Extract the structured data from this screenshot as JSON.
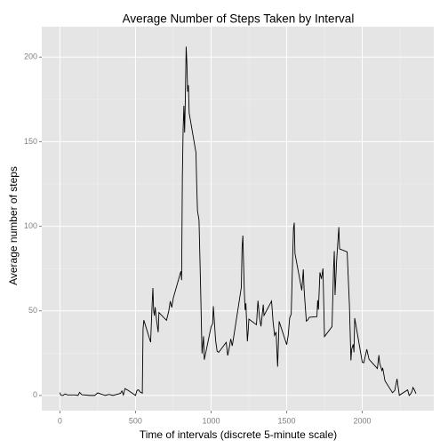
{
  "chart_data": {
    "type": "line",
    "title": "Average Number of Steps Taken by Interval",
    "xlabel": "Time of intervals (discrete 5-minute scale)",
    "ylabel": "Average number of steps",
    "color": "#000000",
    "grid": true,
    "xlim": [
      -120,
      2473
    ],
    "ylim": [
      -9,
      218
    ],
    "xticks": [
      0,
      500,
      1000,
      1500,
      2000
    ],
    "yticks": [
      0,
      50,
      100,
      150,
      200
    ],
    "x": [
      0,
      5,
      10,
      20,
      35,
      50,
      100,
      120,
      130,
      145,
      200,
      230,
      250,
      300,
      325,
      350,
      400,
      410,
      420,
      430,
      440,
      450,
      500,
      510,
      520,
      530,
      545,
      550,
      555,
      600,
      610,
      615,
      620,
      625,
      630,
      640,
      650,
      655,
      705,
      720,
      730,
      740,
      750,
      800,
      805,
      810,
      815,
      820,
      825,
      830,
      835,
      840,
      845,
      850,
      855,
      900,
      905,
      910,
      920,
      930,
      940,
      950,
      955,
      1000,
      1010,
      1015,
      1030,
      1040,
      1050,
      1100,
      1110,
      1120,
      1130,
      1140,
      1150,
      1200,
      1205,
      1210,
      1220,
      1225,
      1230,
      1240,
      1245,
      1250,
      1300,
      1310,
      1320,
      1330,
      1345,
      1350,
      1400,
      1410,
      1420,
      1430,
      1440,
      1450,
      1500,
      1510,
      1520,
      1530,
      1540,
      1545,
      1550,
      1555,
      1600,
      1610,
      1615,
      1620,
      1630,
      1640,
      1650,
      1700,
      1705,
      1710,
      1720,
      1730,
      1740,
      1750,
      1800,
      1810,
      1815,
      1820,
      1830,
      1845,
      1850,
      1900,
      1915,
      1925,
      1930,
      1940,
      1945,
      1950,
      2000,
      2010,
      2030,
      2045,
      2100,
      2110,
      2115,
      2130,
      2135,
      2150,
      2200,
      2215,
      2230,
      2245,
      2300,
      2310,
      2320,
      2330,
      2335,
      2345,
      2355
    ],
    "values": [
      1.7,
      0.3,
      0.1,
      0,
      0.9,
      0.3,
      0.3,
      0,
      1.8,
      0.4,
      0,
      0,
      1.5,
      0,
      0.6,
      0,
      1.2,
      2.6,
      0.3,
      4.1,
      3.5,
      3.1,
      0,
      3.0,
      3.3,
      2.1,
      1.3,
      39.5,
      44.5,
      31.5,
      53.8,
      63.5,
      50.0,
      47.1,
      52.2,
      44.0,
      37.4,
      49.0,
      44.4,
      49.9,
      55.7,
      52.0,
      57.6,
      73.4,
      68.2,
      129.4,
      157.5,
      171.2,
      155.4,
      177.3,
      206.2,
      195.9,
      179.6,
      183.4,
      167.0,
      143.5,
      124.0,
      109.1,
      103.7,
      66.2,
      24.8,
      35.0,
      21.1,
      40.6,
      42.4,
      52.7,
      32.4,
      26.1,
      25.5,
      31.4,
      23.6,
      28.1,
      33.4,
      29.3,
      34.9,
      63.9,
      87.6,
      94.5,
      60.8,
      50.5,
      54.5,
      32.0,
      37.7,
      45.1,
      41.8,
      56.0,
      46.2,
      40.8,
      53.7,
      47.3,
      55.8,
      43.6,
      35.5,
      37.5,
      17.0,
      43.8,
      30.0,
      35.5,
      45.9,
      48.1,
      82.9,
      98.7,
      102.1,
      83.9,
      62.1,
      74.5,
      63.2,
      56.4,
      43.9,
      44.7,
      46.2,
      46.6,
      56.3,
      50.7,
      72.7,
      68.9,
      75.1,
      34.8,
      40.7,
      74.7,
      85.3,
      59.3,
      79.0,
      99.5,
      86.6,
      84.9,
      53.4,
      20.7,
      27.4,
      30.2,
      25.5,
      45.7,
      19.6,
      19.3,
      27.3,
      21.3,
      15.9,
      23.8,
      19.2,
      14.7,
      16.3,
      8.7,
      1.6,
      3.0,
      9.8,
      0.1,
      3.3,
      0,
      0.96,
      2.6,
      4.7,
      3.3,
      1.1
    ]
  }
}
